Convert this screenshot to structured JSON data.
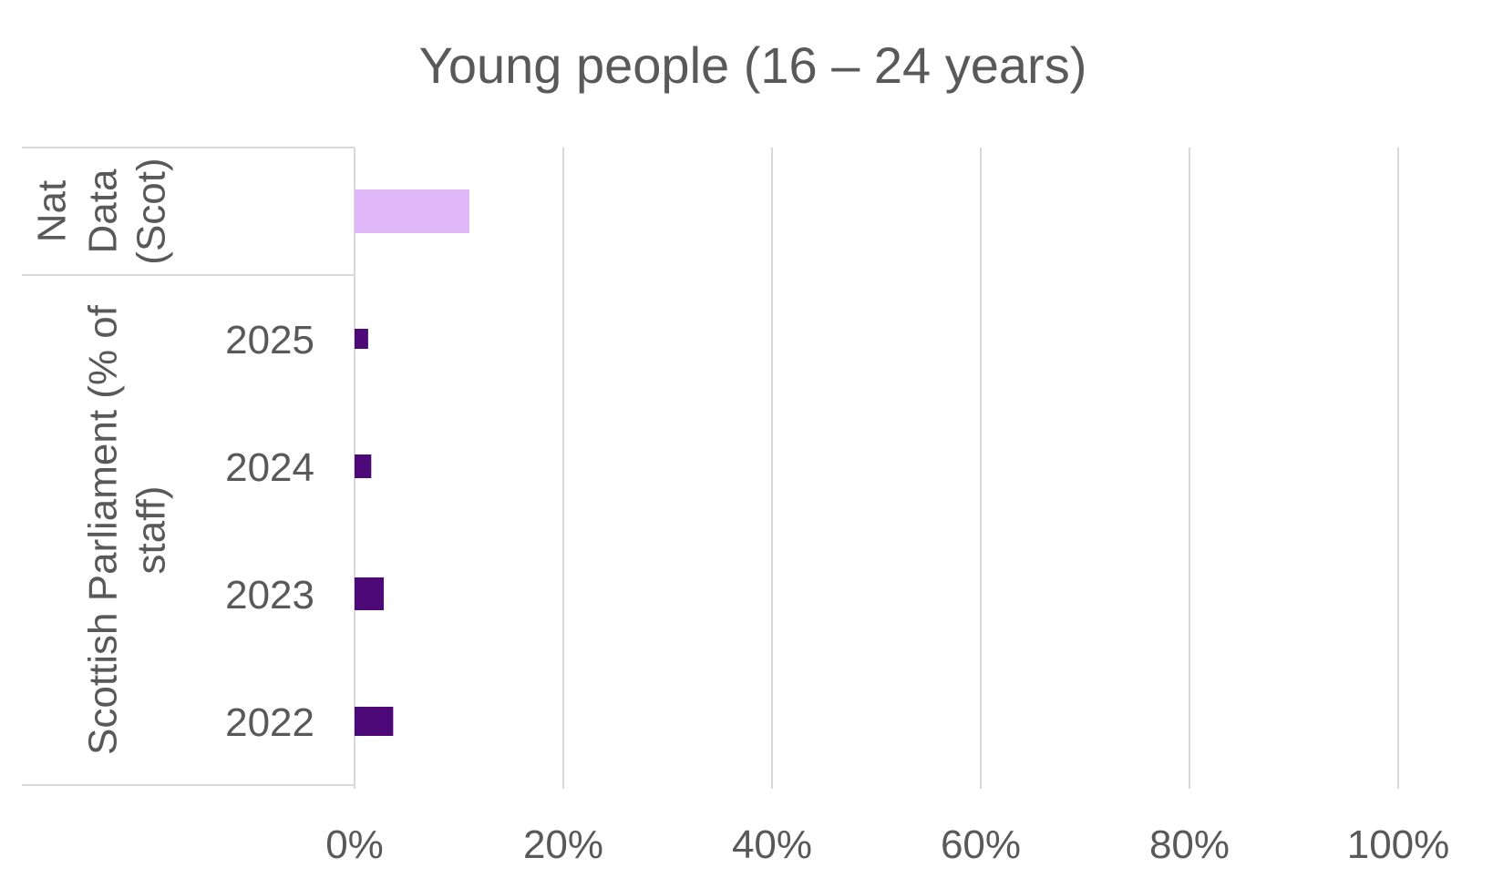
{
  "chart_data": {
    "type": "bar",
    "orientation": "horizontal",
    "title": "Young people (16 – 24 years)",
    "xlim": [
      0,
      100
    ],
    "x_ticks": [
      "0%",
      "20%",
      "40%",
      "60%",
      "80%",
      "100%"
    ],
    "x_tick_values": [
      0,
      20,
      40,
      60,
      80,
      100
    ],
    "grid": true,
    "legend": "none",
    "groups": [
      {
        "name": "Nat Data (Scot)",
        "label_lines": [
          "Nat",
          "Data",
          "(Scot)"
        ],
        "categories": [
          ""
        ],
        "values": [
          11.0
        ],
        "color": "#E0B7F8"
      },
      {
        "name": "Scottish Parliament (% of staff)",
        "label_lines": [
          "Scottish Parliament (% of",
          "staff)"
        ],
        "categories": [
          "2025",
          "2024",
          "2023",
          "2022"
        ],
        "values": [
          1.3,
          1.6,
          2.8,
          3.7
        ],
        "color": "#4E0978"
      }
    ],
    "colors": {
      "grid": "#D9D9D9",
      "text": "#595959"
    }
  }
}
